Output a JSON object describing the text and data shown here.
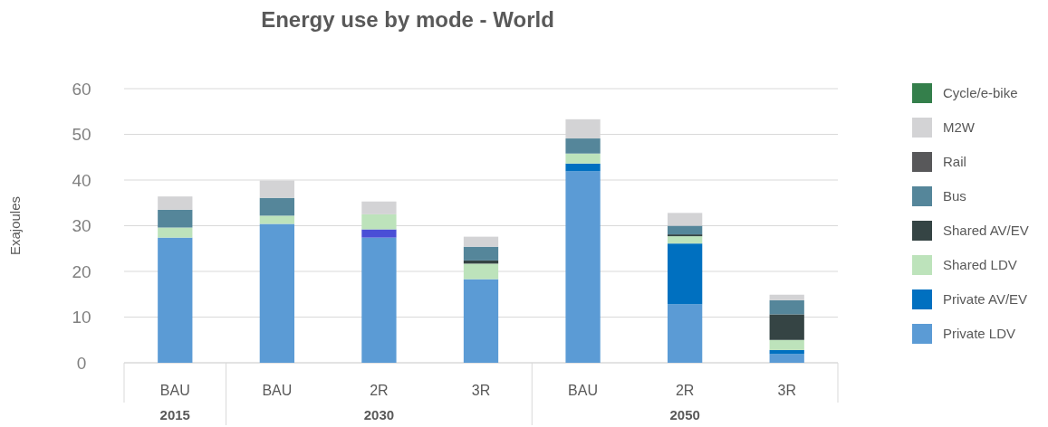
{
  "chart_data": {
    "type": "bar",
    "title": "Energy use by mode - World",
    "ylabel": "Exajoules",
    "stacked": true,
    "categories": [
      "BAU",
      "BAU",
      "2R",
      "3R",
      "BAU",
      "2R",
      "3R"
    ],
    "series": [
      {
        "name": "Private LDV",
        "color": "#5b9bd5",
        "values": [
          27.4,
          30.4,
          27.4,
          18.3,
          41.9,
          12.8,
          1.9
        ]
      },
      {
        "name": "Private AV/EV",
        "color": "#0070c0",
        "colors": [
          null,
          null,
          "#4a4fd6",
          null,
          null,
          null,
          null
        ],
        "values": [
          null,
          null,
          1.8,
          null,
          1.7,
          13.3,
          0.9
        ]
      },
      {
        "name": "Shared LDV",
        "color": "#bde3bb",
        "values": [
          2.2,
          1.8,
          3.3,
          3.4,
          2.2,
          1.6,
          2.2
        ]
      },
      {
        "name": "Shared AV/EV",
        "color": "#354444",
        "values": [
          null,
          null,
          null,
          0.7,
          null,
          0.4,
          5.6
        ]
      },
      {
        "name": "Bus",
        "color": "#55869a",
        "values": [
          3.9,
          3.9,
          null,
          3.0,
          3.3,
          1.9,
          3.1
        ]
      },
      {
        "name": "Rail",
        "color": "#58585a",
        "values": [
          null,
          null,
          null,
          null,
          null,
          null,
          null
        ]
      },
      {
        "name": "M2W",
        "color": "#d3d3d5",
        "values": [
          2.9,
          3.8,
          2.8,
          2.2,
          4.2,
          2.8,
          1.2
        ]
      },
      {
        "name": "Cycle/e-bike",
        "color": "#347f4b",
        "values": [
          null,
          null,
          null,
          null,
          null,
          null,
          null
        ]
      }
    ],
    "annotations": [
      "2015",
      "2030",
      "2050"
    ],
    "ylim": [
      0,
      60
    ],
    "yticks": [
      0,
      10,
      20,
      30,
      40,
      50,
      60
    ],
    "grid": "y",
    "legend": "right"
  }
}
